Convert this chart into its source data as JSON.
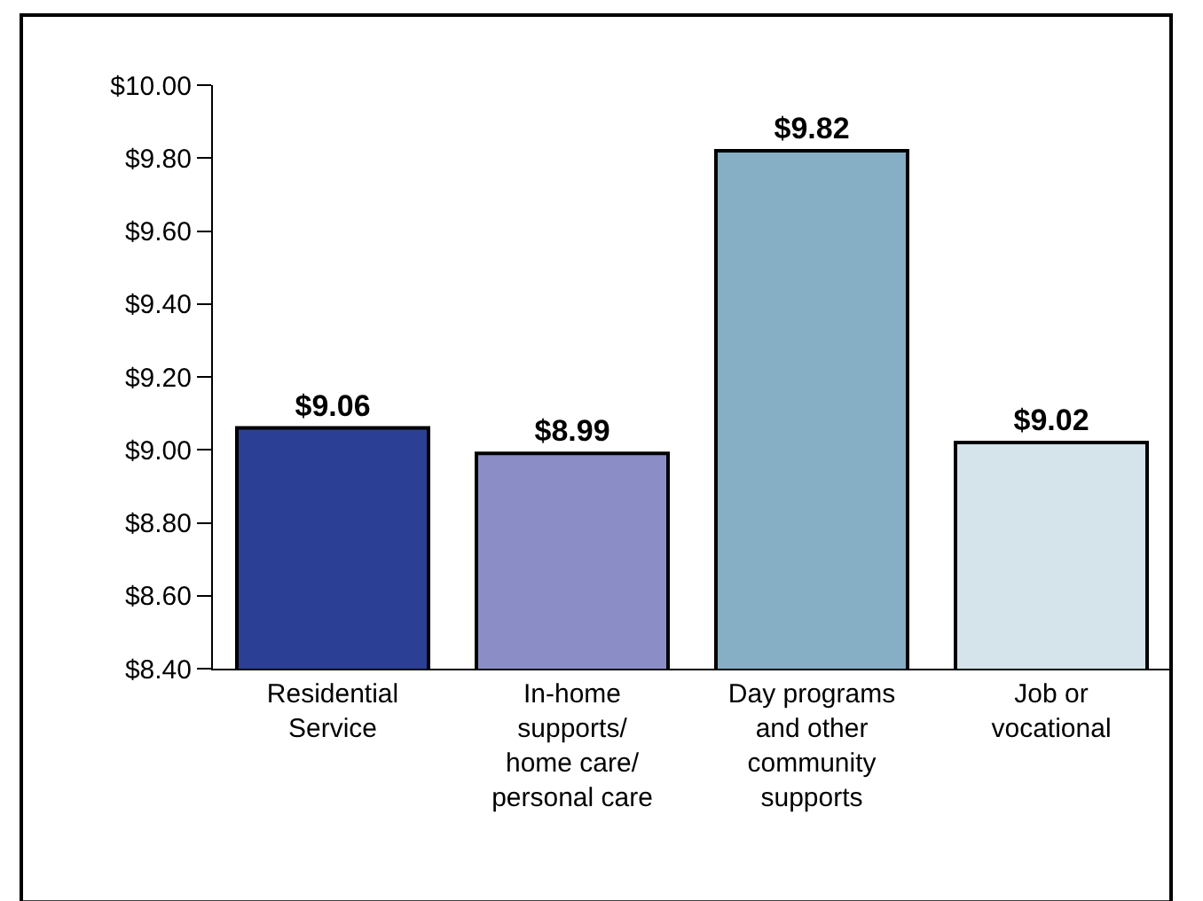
{
  "chart_data": {
    "type": "bar",
    "categories": [
      "Residential\nService",
      "In-home\nsupports/\nhome care/\npersonal care",
      "Day programs\nand other\ncommunity\nsupports",
      "Job or\nvocational"
    ],
    "values": [
      9.06,
      8.99,
      9.82,
      9.02
    ],
    "colors": [
      "#2b3f94",
      "#8b8ec6",
      "#86aec4",
      "#d5e3ea"
    ],
    "value_labels": [
      "$9.06",
      "$8.99",
      "$9.82",
      "$9.02"
    ],
    "ylim": [
      8.4,
      10.0
    ],
    "yticks": [
      {
        "value": 8.4,
        "label": "$8.40"
      },
      {
        "value": 8.6,
        "label": "$8.60"
      },
      {
        "value": 8.8,
        "label": "$8.80"
      },
      {
        "value": 9.0,
        "label": "$9.00"
      },
      {
        "value": 9.2,
        "label": "$9.20"
      },
      {
        "value": 9.4,
        "label": "$9.40"
      },
      {
        "value": 9.6,
        "label": "$9.60"
      },
      {
        "value": 9.8,
        "label": "$9.80"
      },
      {
        "value": 10.0,
        "label": "$10.00"
      }
    ]
  }
}
